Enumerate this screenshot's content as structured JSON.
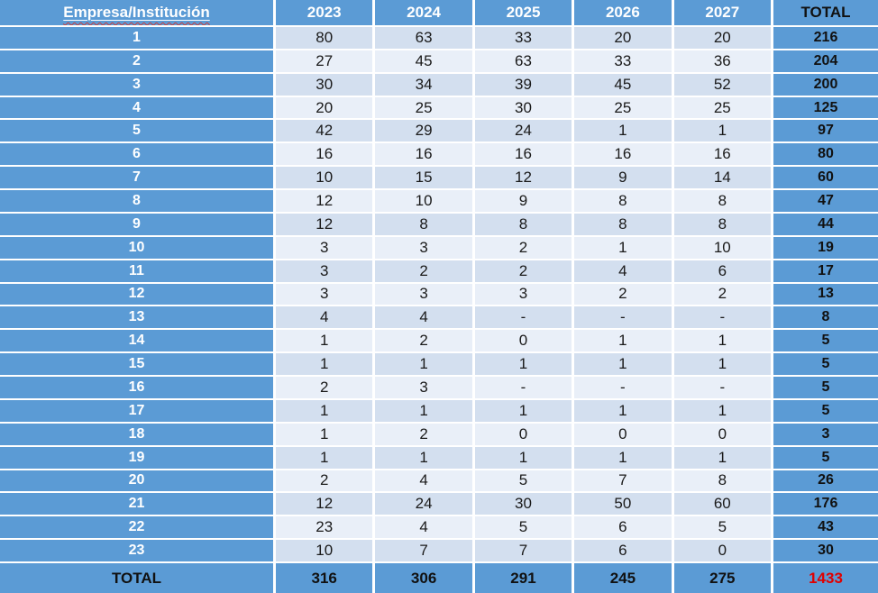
{
  "colors": {
    "accent-blue": "#5B9BD5",
    "band-dark": "#D3DFEF",
    "band-light": "#E9EFF8",
    "grand-total-red": "#E00000"
  },
  "chart_data": {
    "type": "table",
    "columns": [
      "Empresa/Institución",
      "2023",
      "2024",
      "2025",
      "2026",
      "2027",
      "TOTAL"
    ],
    "rows": [
      {
        "label": "1",
        "values": [
          "80",
          "63",
          "33",
          "20",
          "20"
        ],
        "total": "216"
      },
      {
        "label": "2",
        "values": [
          "27",
          "45",
          "63",
          "33",
          "36"
        ],
        "total": "204"
      },
      {
        "label": "3",
        "values": [
          "30",
          "34",
          "39",
          "45",
          "52"
        ],
        "total": "200"
      },
      {
        "label": "4",
        "values": [
          "20",
          "25",
          "30",
          "25",
          "25"
        ],
        "total": "125"
      },
      {
        "label": "5",
        "values": [
          "42",
          "29",
          "24",
          "1",
          "1"
        ],
        "total": "97"
      },
      {
        "label": "6",
        "values": [
          "16",
          "16",
          "16",
          "16",
          "16"
        ],
        "total": "80"
      },
      {
        "label": "7",
        "values": [
          "10",
          "15",
          "12",
          "9",
          "14"
        ],
        "total": "60"
      },
      {
        "label": "8",
        "values": [
          "12",
          "10",
          "9",
          "8",
          "8"
        ],
        "total": "47"
      },
      {
        "label": "9",
        "values": [
          "12",
          "8",
          "8",
          "8",
          "8"
        ],
        "total": "44"
      },
      {
        "label": "10",
        "values": [
          "3",
          "3",
          "2",
          "1",
          "10"
        ],
        "total": "19"
      },
      {
        "label": "11",
        "values": [
          "3",
          "2",
          "2",
          "4",
          "6"
        ],
        "total": "17"
      },
      {
        "label": "12",
        "values": [
          "3",
          "3",
          "3",
          "2",
          "2"
        ],
        "total": "13"
      },
      {
        "label": "13",
        "values": [
          "4",
          "4",
          "-",
          "-",
          "-"
        ],
        "total": "8"
      },
      {
        "label": "14",
        "values": [
          "1",
          "2",
          "0",
          "1",
          "1"
        ],
        "total": "5"
      },
      {
        "label": "15",
        "values": [
          "1",
          "1",
          "1",
          "1",
          "1"
        ],
        "total": "5"
      },
      {
        "label": "16",
        "values": [
          "2",
          "3",
          "-",
          "-",
          "-"
        ],
        "total": "5"
      },
      {
        "label": "17",
        "values": [
          "1",
          "1",
          "1",
          "1",
          "1"
        ],
        "total": "5"
      },
      {
        "label": "18",
        "values": [
          "1",
          "2",
          "0",
          "0",
          "0"
        ],
        "total": "3"
      },
      {
        "label": "19",
        "values": [
          "1",
          "1",
          "1",
          "1",
          "1"
        ],
        "total": "5"
      },
      {
        "label": "20",
        "values": [
          "2",
          "4",
          "5",
          "7",
          "8"
        ],
        "total": "26"
      },
      {
        "label": "21",
        "values": [
          "12",
          "24",
          "30",
          "50",
          "60"
        ],
        "total": "176"
      },
      {
        "label": "22",
        "values": [
          "23",
          "4",
          "5",
          "6",
          "5"
        ],
        "total": "43"
      },
      {
        "label": "23",
        "values": [
          "10",
          "7",
          "7",
          "6",
          "0"
        ],
        "total": "30"
      }
    ],
    "footer": {
      "label": "TOTAL",
      "values": [
        "316",
        "306",
        "291",
        "245",
        "275"
      ],
      "total": "1433"
    }
  }
}
